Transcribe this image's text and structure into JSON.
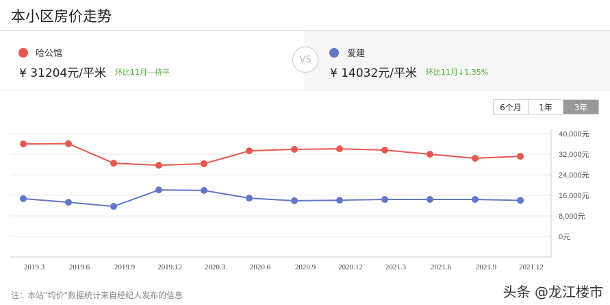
{
  "title": "本小区房价走势",
  "compare": {
    "left": {
      "name": "哈公馆",
      "color": "#e8574f",
      "price": "¥ 31204元/平米",
      "change": "环比11月—持平"
    },
    "vs_label": "VS",
    "right": {
      "name": "爱建",
      "color": "#6377c8",
      "price": "¥ 14032元/平米",
      "change": "环比11月↓1.35%"
    }
  },
  "range_tabs": [
    {
      "label": "6个月",
      "active": false
    },
    {
      "label": "1年",
      "active": false
    },
    {
      "label": "3年",
      "active": true
    }
  ],
  "chart_data": {
    "type": "line",
    "title": "",
    "xlabel": "",
    "ylabel": "",
    "x": [
      "2019.3",
      "2019.6",
      "2019.9",
      "2019.12",
      "2020.3",
      "2020.6",
      "2020.9",
      "2020.12",
      "2021.3",
      "2021.6",
      "2021.9",
      "2021.12"
    ],
    "series": [
      {
        "name": "哈公馆",
        "color": "#e8574f",
        "values": [
          36000,
          36100,
          28500,
          27700,
          28300,
          33300,
          33900,
          34100,
          33600,
          32000,
          30400,
          31204
        ]
      },
      {
        "name": "爱建",
        "color": "#6377c8",
        "values": [
          14700,
          13300,
          11700,
          18100,
          17900,
          14900,
          13900,
          14100,
          14400,
          14400,
          14400,
          14032
        ]
      }
    ],
    "y_ticks": [
      "40,000元",
      "32,000元",
      "24,000元",
      "16,000元",
      "8,000元",
      "0元"
    ],
    "ylim": [
      0,
      40000
    ],
    "grid": true,
    "y_axis_position": "right"
  },
  "note": "注：本站\"均价\"数据统计来自经纪人发布的信息",
  "watermark": "头条 @龙江楼市"
}
